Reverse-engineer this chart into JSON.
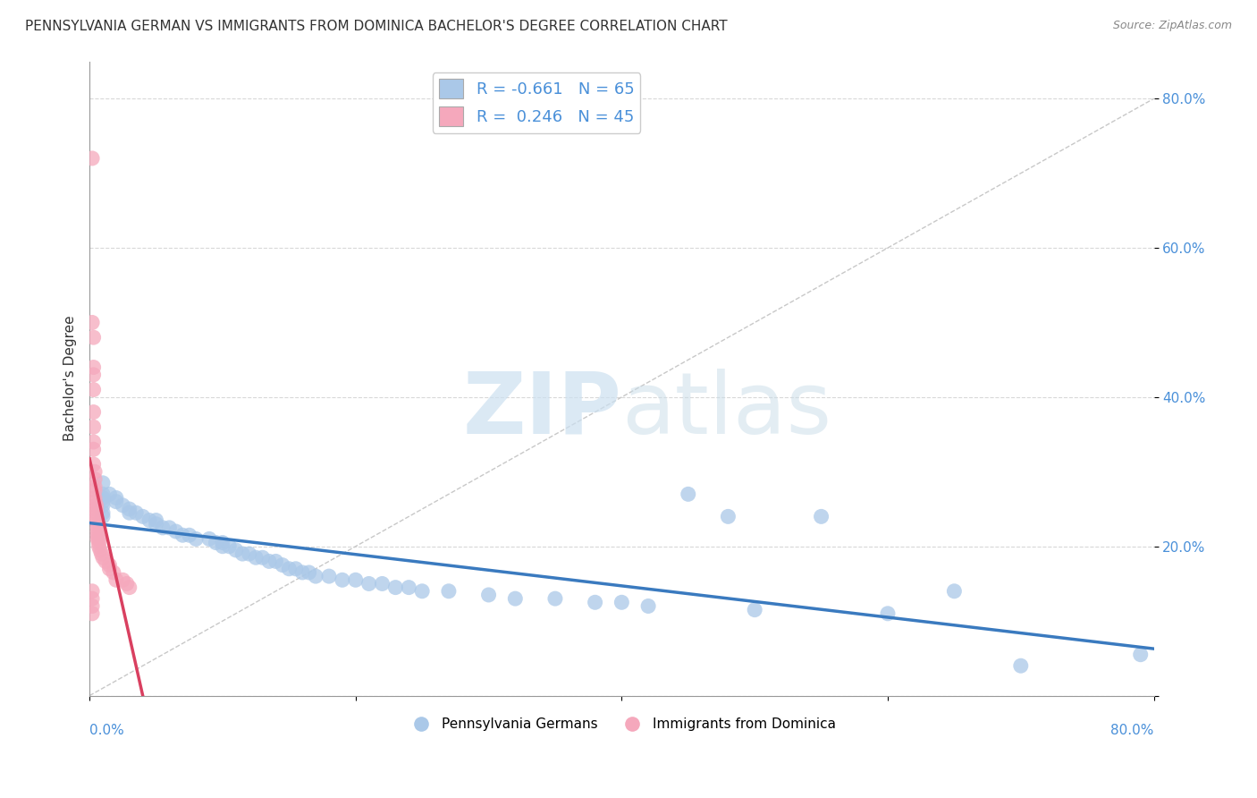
{
  "title": "PENNSYLVANIA GERMAN VS IMMIGRANTS FROM DOMINICA BACHELOR'S DEGREE CORRELATION CHART",
  "source": "Source: ZipAtlas.com",
  "ylabel": "Bachelor's Degree",
  "watermark_zip": "ZIP",
  "watermark_atlas": "atlas",
  "blue_R": -0.661,
  "blue_N": 65,
  "pink_R": 0.246,
  "pink_N": 45,
  "blue_color": "#aac8e8",
  "pink_color": "#f5a8bc",
  "blue_line_color": "#3a7abf",
  "pink_line_color": "#d94060",
  "blue_scatter": [
    [
      0.01,
      0.285
    ],
    [
      0.01,
      0.27
    ],
    [
      0.01,
      0.265
    ],
    [
      0.01,
      0.26
    ],
    [
      0.01,
      0.255
    ],
    [
      0.01,
      0.245
    ],
    [
      0.01,
      0.24
    ],
    [
      0.015,
      0.27
    ],
    [
      0.02,
      0.265
    ],
    [
      0.02,
      0.26
    ],
    [
      0.025,
      0.255
    ],
    [
      0.03,
      0.25
    ],
    [
      0.03,
      0.245
    ],
    [
      0.035,
      0.245
    ],
    [
      0.04,
      0.24
    ],
    [
      0.045,
      0.235
    ],
    [
      0.05,
      0.235
    ],
    [
      0.05,
      0.23
    ],
    [
      0.055,
      0.225
    ],
    [
      0.06,
      0.225
    ],
    [
      0.065,
      0.22
    ],
    [
      0.07,
      0.215
    ],
    [
      0.075,
      0.215
    ],
    [
      0.08,
      0.21
    ],
    [
      0.09,
      0.21
    ],
    [
      0.095,
      0.205
    ],
    [
      0.1,
      0.205
    ],
    [
      0.1,
      0.2
    ],
    [
      0.105,
      0.2
    ],
    [
      0.11,
      0.195
    ],
    [
      0.115,
      0.19
    ],
    [
      0.12,
      0.19
    ],
    [
      0.125,
      0.185
    ],
    [
      0.13,
      0.185
    ],
    [
      0.135,
      0.18
    ],
    [
      0.14,
      0.18
    ],
    [
      0.145,
      0.175
    ],
    [
      0.15,
      0.17
    ],
    [
      0.155,
      0.17
    ],
    [
      0.16,
      0.165
    ],
    [
      0.165,
      0.165
    ],
    [
      0.17,
      0.16
    ],
    [
      0.18,
      0.16
    ],
    [
      0.19,
      0.155
    ],
    [
      0.2,
      0.155
    ],
    [
      0.21,
      0.15
    ],
    [
      0.22,
      0.15
    ],
    [
      0.23,
      0.145
    ],
    [
      0.24,
      0.145
    ],
    [
      0.25,
      0.14
    ],
    [
      0.27,
      0.14
    ],
    [
      0.3,
      0.135
    ],
    [
      0.32,
      0.13
    ],
    [
      0.35,
      0.13
    ],
    [
      0.38,
      0.125
    ],
    [
      0.4,
      0.125
    ],
    [
      0.42,
      0.12
    ],
    [
      0.45,
      0.27
    ],
    [
      0.48,
      0.24
    ],
    [
      0.5,
      0.115
    ],
    [
      0.55,
      0.24
    ],
    [
      0.6,
      0.11
    ],
    [
      0.65,
      0.14
    ],
    [
      0.7,
      0.04
    ],
    [
      0.79,
      0.055
    ]
  ],
  "pink_scatter": [
    [
      0.002,
      0.72
    ],
    [
      0.002,
      0.5
    ],
    [
      0.003,
      0.48
    ],
    [
      0.003,
      0.44
    ],
    [
      0.003,
      0.43
    ],
    [
      0.003,
      0.41
    ],
    [
      0.003,
      0.38
    ],
    [
      0.003,
      0.36
    ],
    [
      0.003,
      0.34
    ],
    [
      0.003,
      0.33
    ],
    [
      0.003,
      0.31
    ],
    [
      0.004,
      0.3
    ],
    [
      0.004,
      0.29
    ],
    [
      0.004,
      0.28
    ],
    [
      0.004,
      0.275
    ],
    [
      0.004,
      0.265
    ],
    [
      0.004,
      0.26
    ],
    [
      0.005,
      0.255
    ],
    [
      0.005,
      0.25
    ],
    [
      0.005,
      0.245
    ],
    [
      0.005,
      0.24
    ],
    [
      0.005,
      0.235
    ],
    [
      0.006,
      0.23
    ],
    [
      0.006,
      0.225
    ],
    [
      0.006,
      0.22
    ],
    [
      0.006,
      0.215
    ],
    [
      0.006,
      0.21
    ],
    [
      0.007,
      0.21
    ],
    [
      0.007,
      0.205
    ],
    [
      0.007,
      0.2
    ],
    [
      0.008,
      0.195
    ],
    [
      0.009,
      0.19
    ],
    [
      0.01,
      0.185
    ],
    [
      0.012,
      0.18
    ],
    [
      0.015,
      0.175
    ],
    [
      0.015,
      0.17
    ],
    [
      0.018,
      0.165
    ],
    [
      0.02,
      0.155
    ],
    [
      0.025,
      0.155
    ],
    [
      0.028,
      0.15
    ],
    [
      0.03,
      0.145
    ],
    [
      0.002,
      0.14
    ],
    [
      0.002,
      0.13
    ],
    [
      0.002,
      0.12
    ],
    [
      0.002,
      0.11
    ]
  ],
  "xlim": [
    0,
    0.8
  ],
  "ylim": [
    0,
    0.85
  ],
  "yticks": [
    0.0,
    0.2,
    0.4,
    0.6,
    0.8
  ],
  "ytick_labels": [
    "",
    "20.0%",
    "40.0%",
    "60.0%",
    "80.0%"
  ],
  "xtick_positions": [
    0.0,
    0.2,
    0.4,
    0.6,
    0.8
  ],
  "background_color": "#ffffff",
  "grid_color": "#d8d8d8",
  "title_fontsize": 11,
  "axis_label_fontsize": 11,
  "tick_fontsize": 11,
  "legend_fontsize": 13,
  "blue_legend_label": "Pennsylvania Germans",
  "pink_legend_label": "Immigrants from Dominica"
}
